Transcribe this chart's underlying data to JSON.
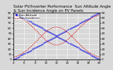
{
  "title": "Solar PV/Inverter Performance  Sun Altitude Angle & Sun Incidence Angle on PV Panels",
  "xlabel_values": [
    4,
    6,
    8,
    10,
    12,
    14,
    16,
    18,
    20
  ],
  "x_min": 4,
  "x_max": 20,
  "y_min": 0,
  "y_max": 90,
  "yticks": [
    0,
    10,
    20,
    30,
    40,
    50,
    60,
    70,
    80,
    90
  ],
  "blue_color": "#0000dd",
  "red_color": "#dd0000",
  "bg_color": "#d8d8d8",
  "grid_color": "#ffffff",
  "title_fontsize": 4.0,
  "tick_fontsize": 3.0,
  "legend_fontsize": 3.0,
  "legend_items": [
    "Sun Altitude",
    "Sun Incidence"
  ],
  "legend_colors": [
    "#0000dd",
    "#dd0000"
  ],
  "x_mid": 12,
  "sigma": 3.5,
  "peak_altitude": 62
}
